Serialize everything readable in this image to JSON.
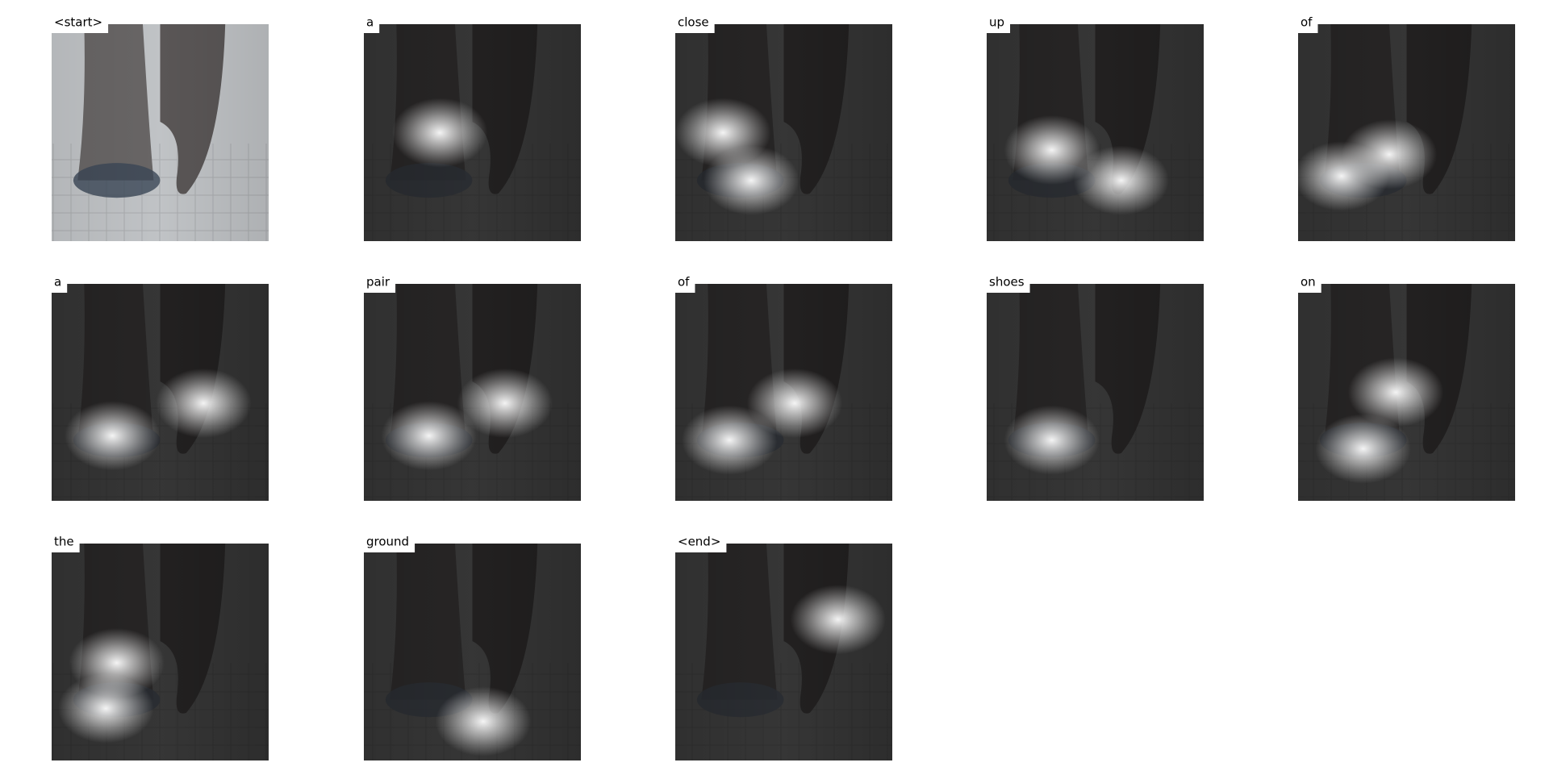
{
  "panels": [
    {
      "word": "<start>"
    },
    {
      "word": "a"
    },
    {
      "word": "close"
    },
    {
      "word": "up"
    },
    {
      "word": "of"
    },
    {
      "word": "a"
    },
    {
      "word": "pair"
    },
    {
      "word": "of"
    },
    {
      "word": "shoes"
    },
    {
      "word": "on"
    },
    {
      "word": "the"
    },
    {
      "word": "ground"
    },
    {
      "word": "<end>"
    }
  ]
}
